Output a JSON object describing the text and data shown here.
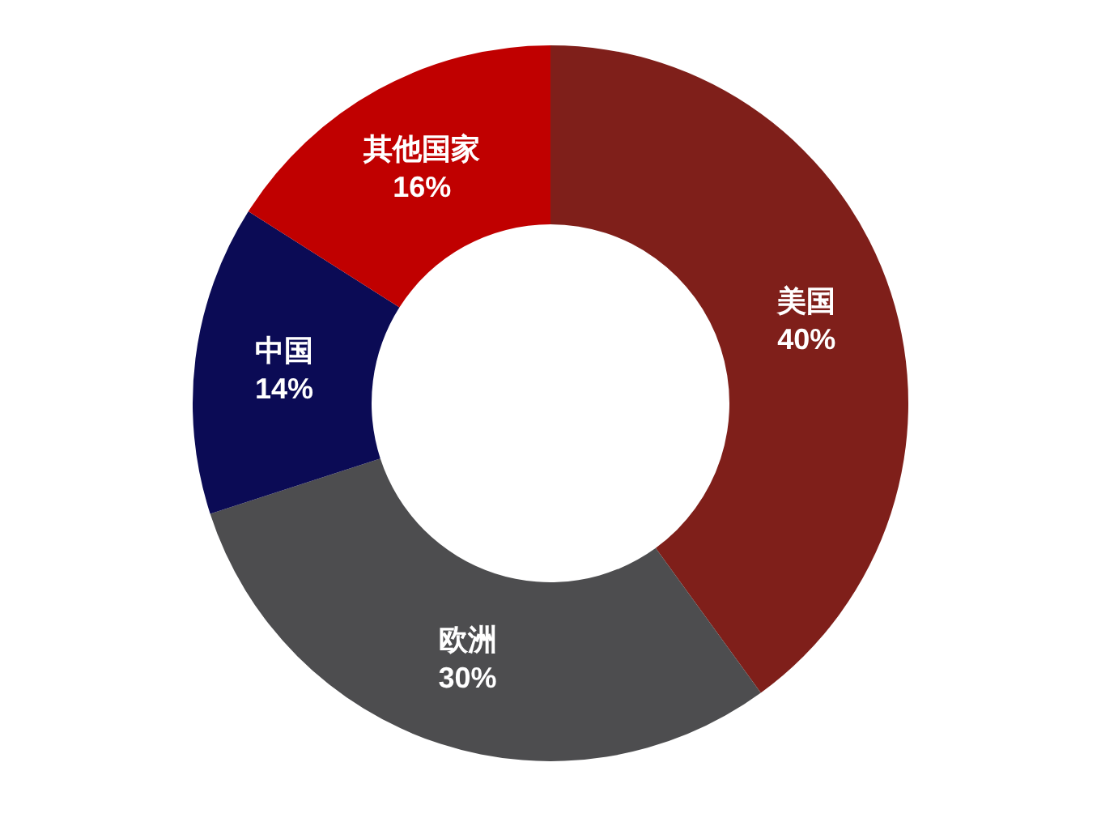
{
  "chart_data": {
    "type": "donut",
    "categories": [
      "美国",
      "欧洲",
      "中国",
      "其他国家"
    ],
    "values": [
      40,
      30,
      14,
      16
    ],
    "value_labels": [
      "40%",
      "30%",
      "14%",
      "16%"
    ],
    "colors": [
      "#7f1f1a",
      "#4d4d4f",
      "#0b0b55",
      "#c00000"
    ]
  }
}
